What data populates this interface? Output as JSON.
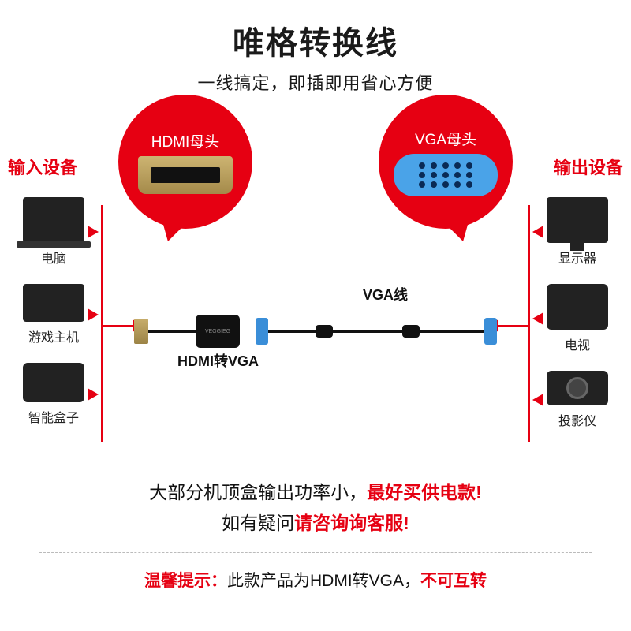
{
  "title": "唯格转换线",
  "subtitle": "一线搞定，即插即用省心方便",
  "bubble_left_label": "HDMI母头",
  "bubble_right_label": "VGA母头",
  "input_heading": "输入设备",
  "output_heading": "输出设备",
  "input_devices": [
    {
      "label": "电脑"
    },
    {
      "label": "游戏主机"
    },
    {
      "label": "智能盒子"
    }
  ],
  "output_devices": [
    {
      "label": "显示器"
    },
    {
      "label": "电视"
    },
    {
      "label": "投影仪"
    }
  ],
  "adapter_brand": "VEGGIEG",
  "cable_label_adapter": "HDMI转VGA",
  "cable_label_vga": "VGA线",
  "note_line1_black": "大部分机顶盒输出功率小，",
  "note_line1_red": "最好买供电款!",
  "note_line2_black": "如有疑问",
  "note_line2_red": "请咨询询客服!",
  "tip_prefix": "温馨提示：",
  "tip_body": "此款产品为HDMI转VGA，",
  "tip_red": "不可互转",
  "colors": {
    "accent_red": "#e60012",
    "vga_blue": "#4aa3e8",
    "hdmi_gold": "#b99a55",
    "background": "#ffffff",
    "text": "#1a1a1a"
  }
}
